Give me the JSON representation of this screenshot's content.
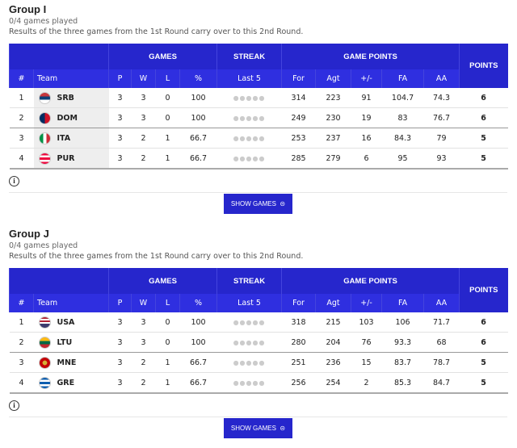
{
  "groups": [
    {
      "title": "Group I",
      "played": "0/4 games played",
      "note": "Results of the three games from the 1st Round carry over to this 2nd Round.",
      "header_groups": [
        "GAMES",
        "STREAK",
        "GAME POINTS",
        "POINTS"
      ],
      "columns": [
        "#",
        "Team",
        "P",
        "W",
        "L",
        "%",
        "Last 5",
        "For",
        "Agt",
        "+/-",
        "FA",
        "AA"
      ],
      "rows": [
        [
          1,
          "SRB",
          3,
          3,
          0,
          100,
          314,
          223,
          91,
          104.7,
          74.3,
          6
        ],
        [
          2,
          "DOM",
          3,
          3,
          0,
          100,
          249,
          230,
          19,
          83,
          76.7,
          6
        ],
        [
          3,
          "ITA",
          3,
          2,
          1,
          66.7,
          253,
          237,
          16,
          84.3,
          79,
          5
        ],
        [
          4,
          "PUR",
          3,
          2,
          1,
          66.7,
          285,
          279,
          6,
          95,
          93,
          5
        ]
      ],
      "button": "SHOW GAMES"
    },
    {
      "title": "Group J",
      "played": "0/4 games played",
      "note": "Results of the three games from the 1st Round carry over to this 2nd Round.",
      "header_groups": [
        "GAMES",
        "STREAK",
        "GAME POINTS",
        "POINTS"
      ],
      "columns": [
        "#",
        "Team",
        "P",
        "W",
        "L",
        "%",
        "Last 5",
        "For",
        "Agt",
        "+/-",
        "FA",
        "AA"
      ],
      "rows": [
        [
          1,
          "USA",
          3,
          3,
          0,
          100,
          318,
          215,
          103,
          106,
          71.7,
          6
        ],
        [
          2,
          "LTU",
          3,
          3,
          0,
          100,
          280,
          204,
          76,
          93.3,
          68,
          6
        ],
        [
          3,
          "MNE",
          3,
          2,
          1,
          66.7,
          251,
          236,
          15,
          83.7,
          78.7,
          5
        ],
        [
          4,
          "GRE",
          3,
          2,
          1,
          66.7,
          256,
          254,
          2,
          85.3,
          84.7,
          5
        ]
      ],
      "button": "SHOW GAMES"
    }
  ]
}
